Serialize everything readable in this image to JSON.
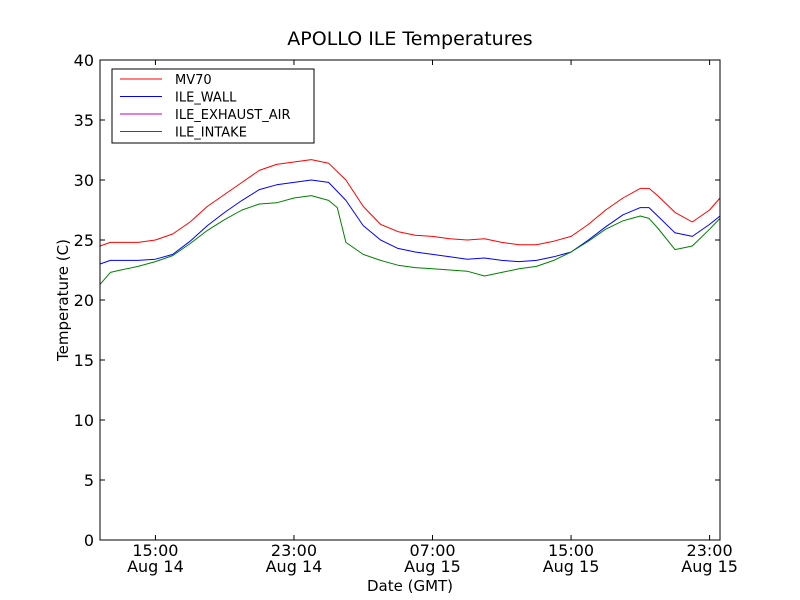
{
  "chart_data": {
    "type": "line",
    "title": "APOLLO ILE Temperatures",
    "xlabel": "Date (GMT)",
    "ylabel": "Temperature (C)",
    "xlim": [
      11.8,
      47.6
    ],
    "ylim": [
      0,
      40
    ],
    "grid": false,
    "legend_position": "top-left",
    "y_ticks": [
      0,
      5,
      10,
      15,
      20,
      25,
      30,
      35,
      40
    ],
    "x_ticks": [
      {
        "value": 15,
        "line1": "15:00",
        "line2": "Aug 14"
      },
      {
        "value": 23,
        "line1": "23:00",
        "line2": "Aug 14"
      },
      {
        "value": 31,
        "line1": "07:00",
        "line2": "Aug 15"
      },
      {
        "value": 39,
        "line1": "15:00",
        "line2": "Aug 15"
      },
      {
        "value": 47,
        "line1": "23:00",
        "line2": "Aug 15"
      }
    ],
    "series": [
      {
        "name": "MV70",
        "color": "#ff0000",
        "x": [
          11.8,
          12.4,
          13.0,
          14.0,
          15.0,
          16.0,
          17.0,
          18.0,
          19.0,
          20.0,
          21.0,
          22.0,
          23.0,
          24.0,
          25.0,
          26.0,
          27.0,
          28.0,
          29.0,
          30.0,
          31.0,
          32.0,
          33.0,
          34.0,
          35.0,
          36.0,
          37.0,
          38.0,
          39.0,
          40.0,
          41.0,
          42.0,
          43.0,
          43.5,
          44.0,
          45.0,
          46.0,
          47.0,
          47.6
        ],
        "values": [
          24.5,
          24.8,
          24.8,
          24.8,
          25.0,
          25.5,
          26.5,
          27.8,
          28.8,
          29.8,
          30.8,
          31.3,
          31.5,
          31.7,
          31.4,
          30.0,
          27.8,
          26.3,
          25.7,
          25.4,
          25.3,
          25.1,
          25.0,
          25.1,
          24.8,
          24.6,
          24.6,
          24.9,
          25.3,
          26.3,
          27.5,
          28.5,
          29.3,
          29.3,
          28.7,
          27.3,
          26.5,
          27.5,
          28.5
        ]
      },
      {
        "name": "ILE_WALL",
        "color": "#0000ff",
        "x": [
          11.8,
          12.4,
          13.0,
          14.0,
          15.0,
          16.0,
          17.0,
          18.0,
          19.0,
          20.0,
          21.0,
          22.0,
          23.0,
          24.0,
          25.0,
          26.0,
          27.0,
          28.0,
          29.0,
          30.0,
          31.0,
          32.0,
          33.0,
          34.0,
          35.0,
          36.0,
          37.0,
          38.0,
          39.0,
          40.0,
          41.0,
          42.0,
          43.0,
          43.5,
          44.0,
          45.0,
          46.0,
          47.0,
          47.6
        ],
        "values": [
          23.0,
          23.3,
          23.3,
          23.3,
          23.4,
          23.8,
          24.9,
          26.2,
          27.3,
          28.3,
          29.2,
          29.6,
          29.8,
          30.0,
          29.8,
          28.3,
          26.2,
          25.0,
          24.3,
          24.0,
          23.8,
          23.6,
          23.4,
          23.5,
          23.3,
          23.2,
          23.3,
          23.6,
          24.0,
          25.0,
          26.1,
          27.1,
          27.7,
          27.7,
          27.0,
          25.6,
          25.3,
          26.3,
          27.0
        ]
      },
      {
        "name": "ILE_EXHAUST_AIR",
        "color": "#bf00bf",
        "x": [],
        "values": []
      },
      {
        "name": "ILE_INTAKE",
        "color": "#008000",
        "x": [
          11.8,
          12.4,
          13.0,
          14.0,
          15.0,
          16.0,
          17.0,
          18.0,
          19.0,
          20.0,
          21.0,
          22.0,
          23.0,
          24.0,
          25.0,
          25.5,
          26.0,
          27.0,
          28.0,
          29.0,
          30.0,
          31.0,
          32.0,
          33.0,
          34.0,
          35.0,
          36.0,
          37.0,
          38.0,
          39.0,
          40.0,
          41.0,
          42.0,
          43.0,
          43.5,
          44.0,
          45.0,
          46.0,
          47.0,
          47.6
        ],
        "values": [
          21.3,
          22.3,
          22.5,
          22.8,
          23.2,
          23.7,
          24.7,
          25.8,
          26.7,
          27.5,
          28.0,
          28.1,
          28.5,
          28.7,
          28.3,
          27.7,
          24.8,
          23.8,
          23.3,
          22.9,
          22.7,
          22.6,
          22.5,
          22.4,
          22.0,
          22.3,
          22.6,
          22.8,
          23.3,
          24.0,
          24.9,
          25.9,
          26.6,
          27.0,
          26.8,
          26.0,
          24.2,
          24.5,
          25.9,
          26.8
        ]
      }
    ]
  }
}
